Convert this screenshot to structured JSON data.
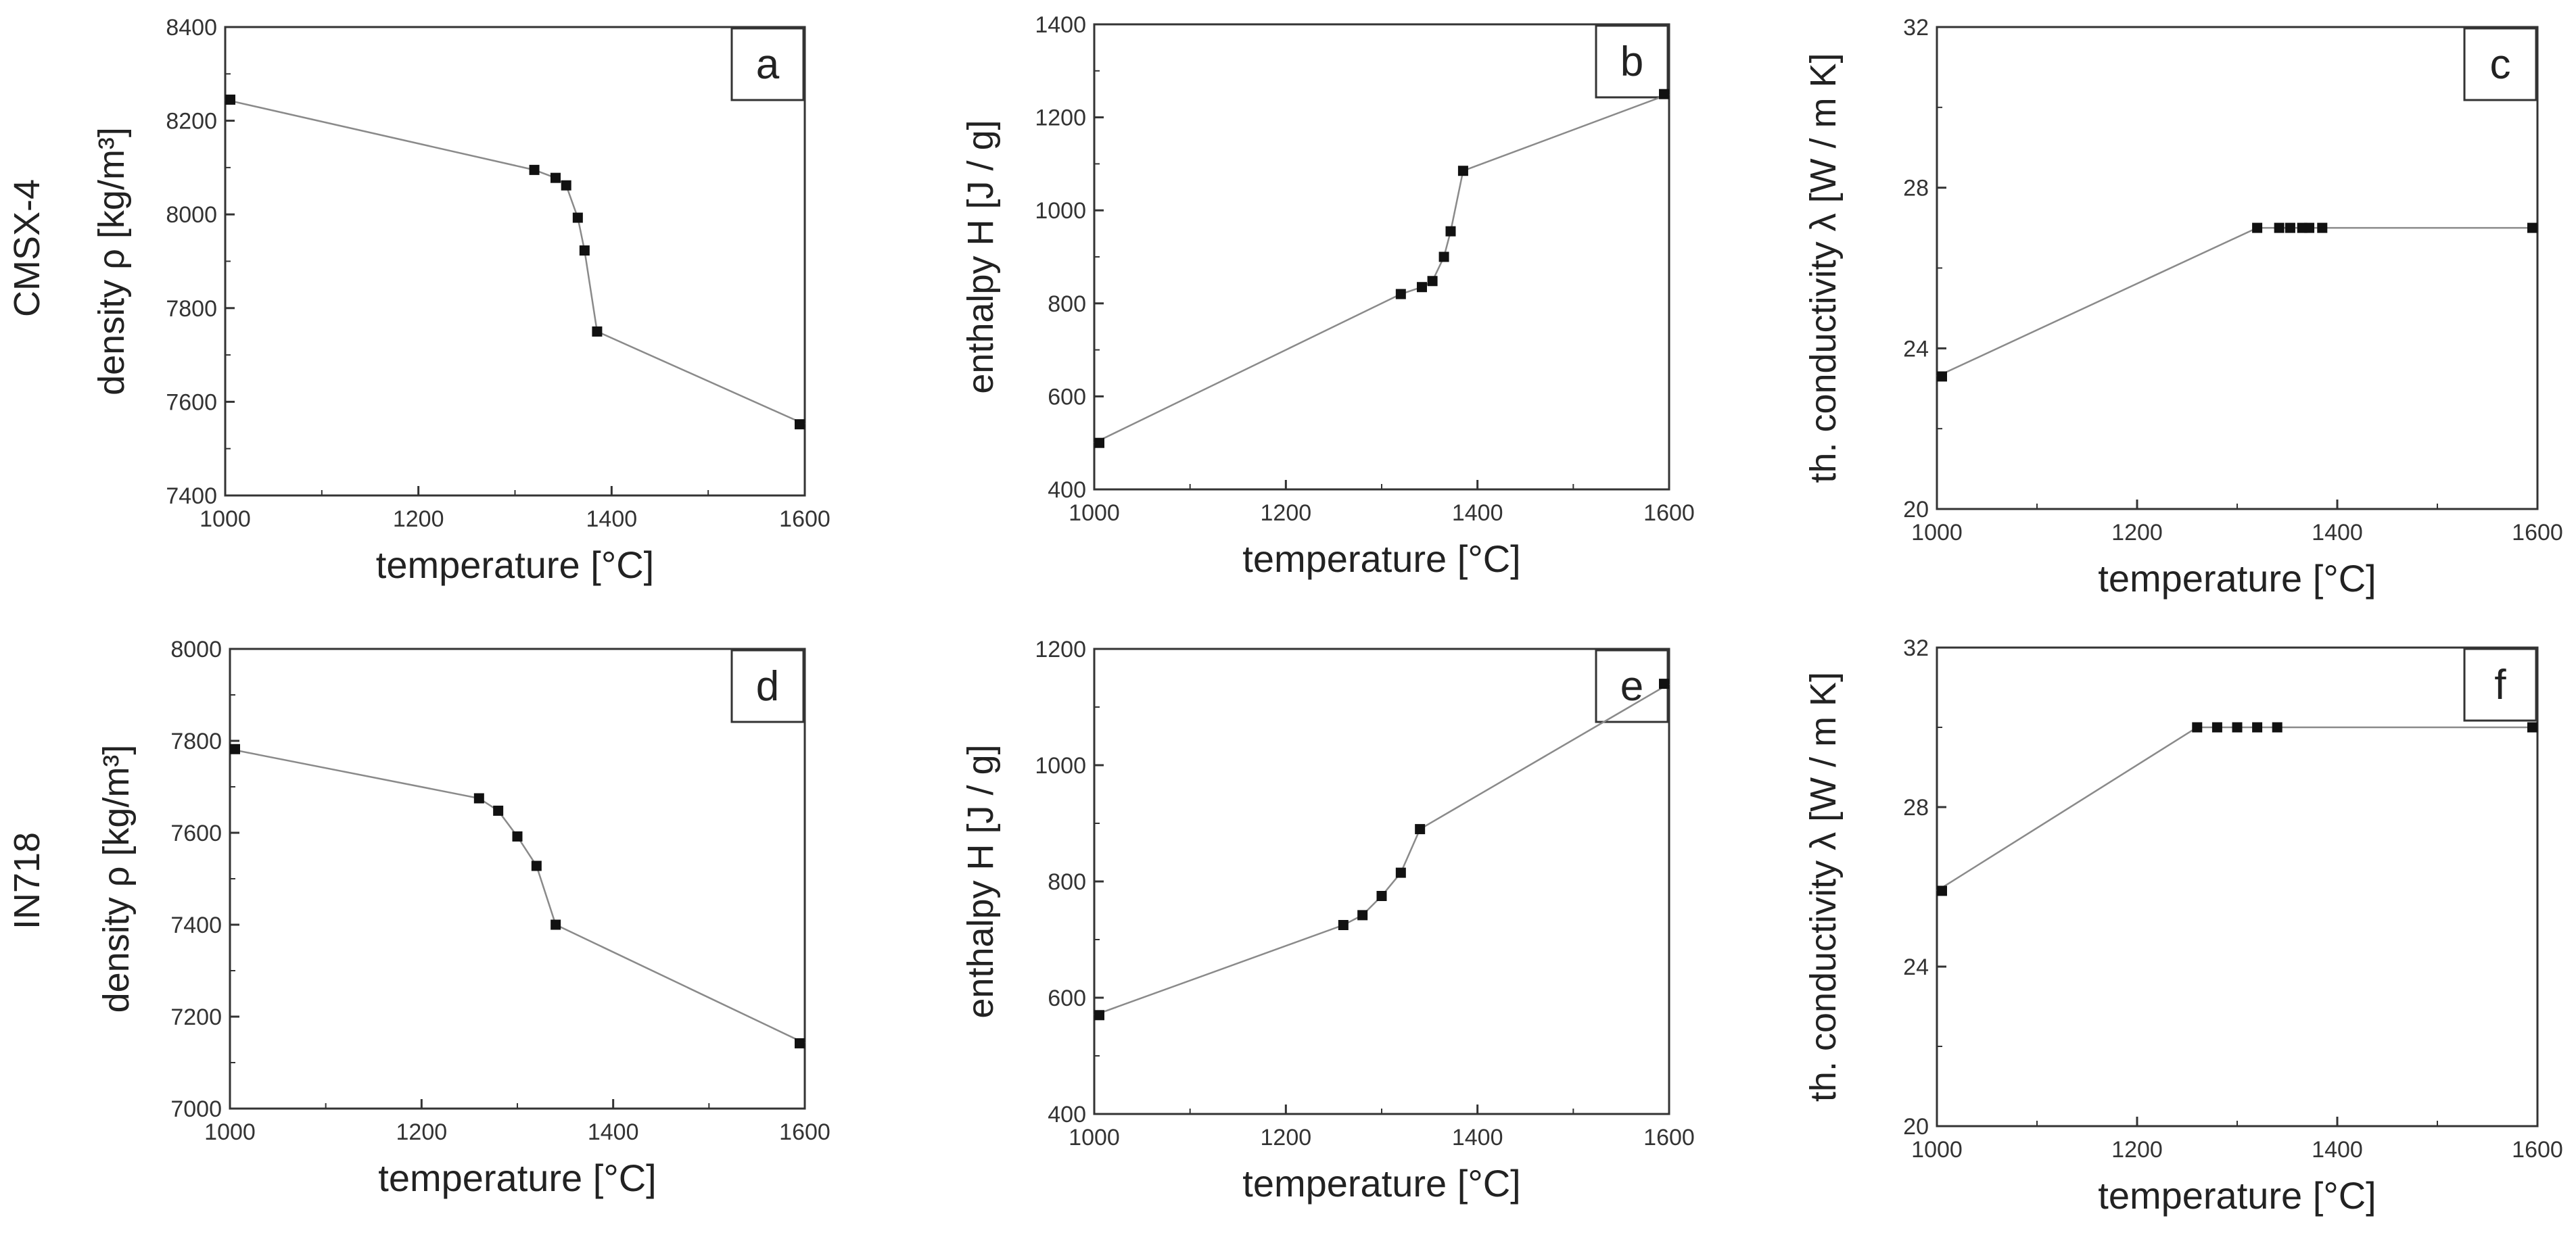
{
  "row_labels": [
    "CMSX-4",
    "IN718"
  ],
  "colors": {
    "axis": "#333333",
    "line": "#8a8a8a",
    "marker": "#111111"
  },
  "chart_data": [
    {
      "type": "line",
      "panel": "a",
      "xlabel": "temperature [°C]",
      "ylabel": "density ρ [kg/m³]",
      "xlim": [
        1000,
        1600
      ],
      "ylim": [
        7400,
        8400
      ],
      "xticks": [
        1000,
        1200,
        1400,
        1600
      ],
      "yticks": [
        7400,
        7600,
        7800,
        8000,
        8200,
        8400
      ],
      "x": [
        1000,
        1320,
        1342,
        1353,
        1365,
        1372,
        1385,
        1600
      ],
      "y": [
        8245,
        8095,
        8078,
        8062,
        7993,
        7923,
        7750,
        7552
      ]
    },
    {
      "type": "line",
      "panel": "b",
      "xlabel": "temperature [°C]",
      "ylabel": "enthalpy H [J / g]",
      "xlim": [
        1000,
        1600
      ],
      "ylim": [
        400,
        1400
      ],
      "xticks": [
        1000,
        1200,
        1400,
        1600
      ],
      "yticks": [
        400,
        600,
        800,
        1000,
        1200,
        1400
      ],
      "x": [
        1000,
        1320,
        1342,
        1353,
        1365,
        1372,
        1385,
        1600
      ],
      "y": [
        500,
        820,
        835,
        848,
        900,
        955,
        1085,
        1250
      ]
    },
    {
      "type": "line",
      "panel": "c",
      "xlabel": "temperature [°C]",
      "ylabel": "th. conductivity λ [W / m K]",
      "xlim": [
        1000,
        1600
      ],
      "ylim": [
        20,
        32
      ],
      "xticks": [
        1000,
        1200,
        1400,
        1600
      ],
      "yticks": [
        20,
        24,
        28,
        32
      ],
      "x": [
        1000,
        1320,
        1342,
        1353,
        1365,
        1372,
        1385,
        1600
      ],
      "y": [
        23.3,
        27.0,
        27.0,
        27.0,
        27.0,
        27.0,
        27.0,
        27.0
      ]
    },
    {
      "type": "line",
      "panel": "d",
      "xlabel": "temperature [°C]",
      "ylabel": "density ρ [kg/m³]",
      "xlim": [
        1000,
        1600
      ],
      "ylim": [
        7000,
        8000
      ],
      "xticks": [
        1000,
        1200,
        1400,
        1600
      ],
      "yticks": [
        7000,
        7200,
        7400,
        7600,
        7800,
        8000
      ],
      "x": [
        1000,
        1260,
        1280,
        1300,
        1320,
        1340,
        1600
      ],
      "y": [
        7782,
        7675,
        7648,
        7592,
        7528,
        7400,
        7142
      ]
    },
    {
      "type": "line",
      "panel": "e",
      "xlabel": "temperature [°C]",
      "ylabel": "enthalpy H [J / g]",
      "xlim": [
        1000,
        1600
      ],
      "ylim": [
        400,
        1200
      ],
      "xticks": [
        1000,
        1200,
        1400,
        1600
      ],
      "yticks": [
        400,
        600,
        800,
        1000,
        1200
      ],
      "x": [
        1000,
        1260,
        1280,
        1300,
        1320,
        1340,
        1600
      ],
      "y": [
        570,
        725,
        742,
        775,
        815,
        890,
        1140
      ]
    },
    {
      "type": "line",
      "panel": "f",
      "xlabel": "temperature [°C]",
      "ylabel": "th. conductivity λ [W / m K]",
      "xlim": [
        1000,
        1600
      ],
      "ylim": [
        20,
        32
      ],
      "xticks": [
        1000,
        1200,
        1400,
        1600
      ],
      "yticks": [
        20,
        24,
        28,
        32
      ],
      "x": [
        1000,
        1260,
        1280,
        1300,
        1320,
        1340,
        1600
      ],
      "y": [
        25.9,
        30.0,
        30.0,
        30.0,
        30.0,
        30.0,
        30.0
      ]
    }
  ]
}
